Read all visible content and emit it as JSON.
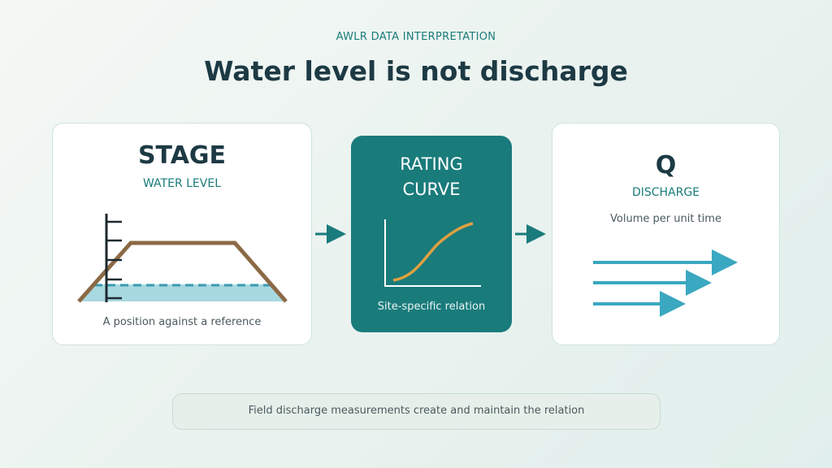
{
  "header": {
    "eyebrow": "AWLR DATA INTERPRETATION",
    "title": "Water level is not discharge"
  },
  "cards": [
    {
      "title": "STAGE",
      "subtitle": "WATER LEVEL",
      "caption": "A position against a reference"
    },
    {
      "title_lines": [
        "RATING",
        "CURVE"
      ],
      "caption": "Site-specific relation"
    },
    {
      "title": "Q",
      "subtitle": "DISCHARGE",
      "caption": "Volume per unit time"
    }
  ],
  "footer": {
    "note": "Field discharge measurements create and maintain the relation"
  }
}
